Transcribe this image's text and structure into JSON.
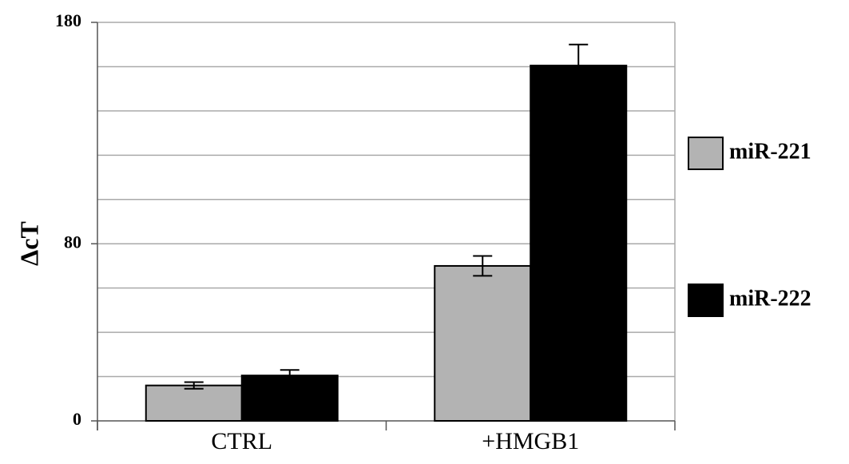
{
  "chart_data": {
    "type": "bar",
    "ylabel": "ΔcT",
    "categories": [
      "CTRL",
      "+HMGB1"
    ],
    "series": [
      {
        "name": "miR-221",
        "color": "#b3b3b3",
        "values": [
          16,
          70
        ],
        "errors": [
          1.5,
          4.5
        ]
      },
      {
        "name": "miR-222",
        "color": "#000000",
        "values": [
          20.5,
          160.5
        ],
        "errors": [
          2.5,
          9.5
        ]
      }
    ],
    "ylim": [
      0,
      180
    ],
    "yticks": [
      0,
      80,
      180
    ],
    "grid_lines": [
      20,
      40,
      60,
      80,
      100,
      120,
      140,
      160,
      180
    ],
    "grid": true,
    "legend": "right"
  }
}
